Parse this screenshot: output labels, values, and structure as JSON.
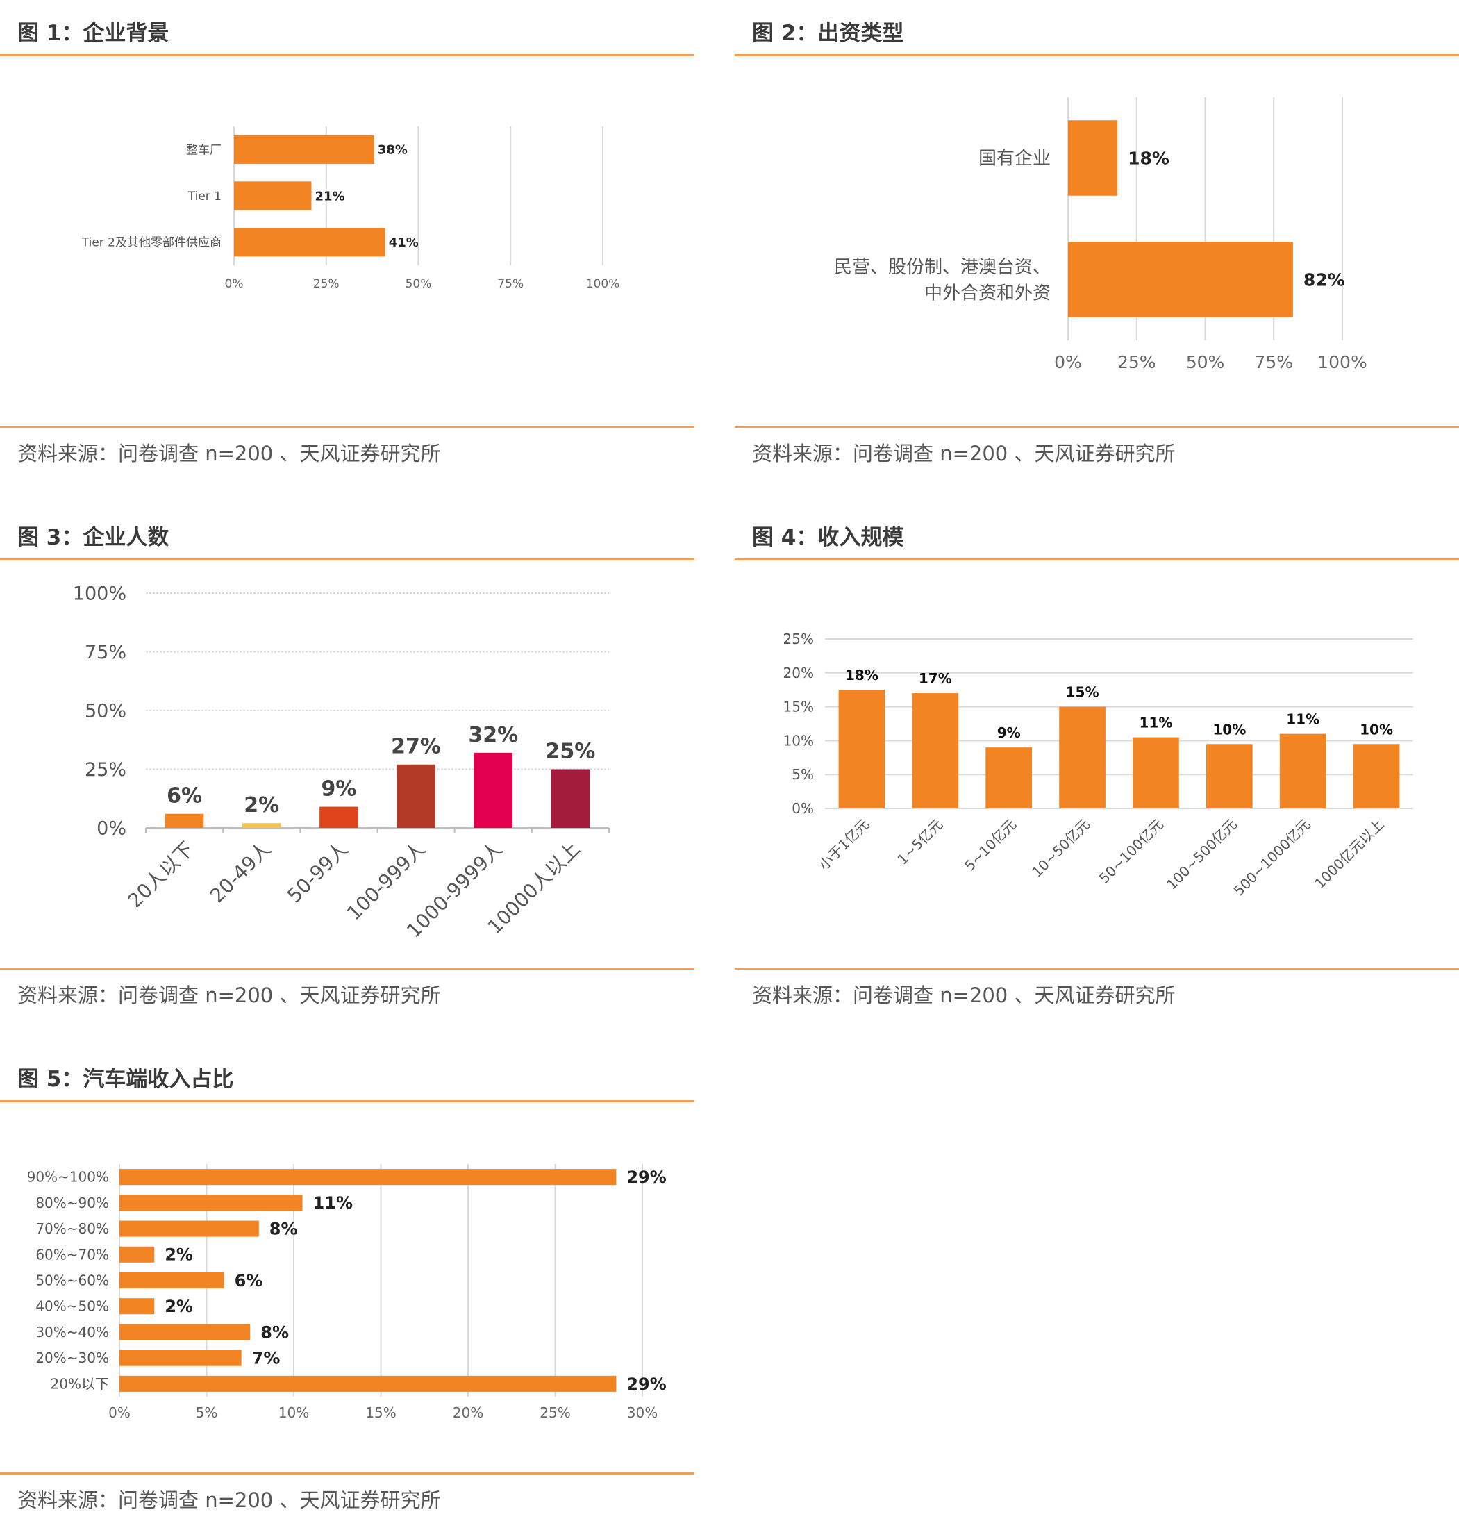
{
  "colors": {
    "orange": "#f28424",
    "rule": "#f0a05a",
    "grid": "#d9d9d9"
  },
  "figures": [
    {
      "title": "图 1：企业背景",
      "source": "资料来源：问卷调查  n=200  、天风证券研究所"
    },
    {
      "title": "图 2：出资类型",
      "source": "资料来源：问卷调查  n=200  、天风证券研究所"
    },
    {
      "title": "图 3：企业人数",
      "source": "资料来源：问卷调查  n=200  、天风证券研究所"
    },
    {
      "title": "图 4：收入规模",
      "source": "资料来源：问卷调查  n=200  、天风证券研究所"
    },
    {
      "title": "图 5：汽车端收入占比",
      "source": "资料来源：问卷调查  n=200  、天风证券研究所"
    }
  ],
  "chart_data": [
    {
      "type": "bar",
      "orientation": "horizontal",
      "categories": [
        "整车厂",
        "Tier 1",
        "Tier 2及其他零部件供应商"
      ],
      "values": [
        38,
        21,
        41
      ],
      "labels": [
        "38%",
        "21%",
        "41%"
      ],
      "xlim": [
        0,
        100
      ],
      "ticks": [
        "0%",
        "25%",
        "50%",
        "75%",
        "100%"
      ],
      "color": "#f28424"
    },
    {
      "type": "bar",
      "orientation": "horizontal",
      "categories": [
        [
          "国有企业"
        ],
        [
          "民营、股份制、港澳台资、",
          "中外合资和外资"
        ]
      ],
      "values": [
        18,
        82
      ],
      "labels": [
        "18%",
        "82%"
      ],
      "xlim": [
        0,
        100
      ],
      "ticks": [
        "0%",
        "25%",
        "50%",
        "75%",
        "100%"
      ],
      "color": "#f28424"
    },
    {
      "type": "bar",
      "orientation": "vertical",
      "categories": [
        "20人以下",
        "20-49人",
        "50-99人",
        "100-999人",
        "1000-9999人",
        "10000人以上"
      ],
      "values": [
        6,
        2,
        9,
        27,
        32,
        25
      ],
      "labels": [
        "6%",
        "2%",
        "9%",
        "27%",
        "32%",
        "25%"
      ],
      "colors": [
        "#f28424",
        "#f5c24a",
        "#e0441b",
        "#b23a26",
        "#e4004f",
        "#a41c3b"
      ],
      "ylim": [
        0,
        100
      ],
      "ticks": [
        "0%",
        "25%",
        "50%",
        "75%",
        "100%"
      ]
    },
    {
      "type": "bar",
      "orientation": "vertical",
      "categories": [
        "小于1亿元",
        "1~5亿元",
        "5~10亿元",
        "10~50亿元",
        "50~100亿元",
        "100~500亿元",
        "500~1000亿元",
        "1000亿元以上"
      ],
      "values": [
        17.5,
        17,
        9,
        15,
        10.5,
        9.5,
        11,
        9.5
      ],
      "labels": [
        "18%",
        "17%",
        "9%",
        "15%",
        "11%",
        "10%",
        "11%",
        "10%"
      ],
      "ylim": [
        0,
        25
      ],
      "ticks": [
        "0%",
        "5%",
        "10%",
        "15%",
        "20%",
        "25%"
      ],
      "color": "#f28424"
    },
    {
      "type": "bar",
      "orientation": "horizontal",
      "categories": [
        "90%~100%",
        "80%~90%",
        "70%~80%",
        "60%~70%",
        "50%~60%",
        "40%~50%",
        "30%~40%",
        "20%~30%",
        "20%以下"
      ],
      "values": [
        28.5,
        10.5,
        8,
        2,
        6,
        2,
        7.5,
        7,
        28.5
      ],
      "labels": [
        "29%",
        "11%",
        "8%",
        "2%",
        "6%",
        "2%",
        "8%",
        "7%",
        "29%"
      ],
      "xlim": [
        0,
        30
      ],
      "ticks": [
        "0%",
        "5%",
        "10%",
        "15%",
        "20%",
        "25%",
        "30%"
      ],
      "color": "#f28424"
    }
  ]
}
